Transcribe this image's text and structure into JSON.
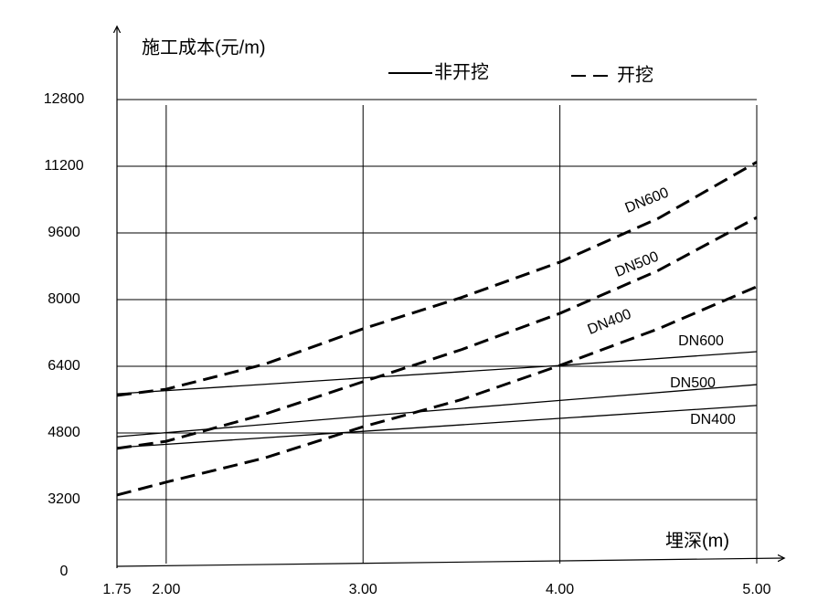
{
  "chart_data": {
    "type": "line",
    "y_label": "施工成本(元/m)",
    "x_label": "埋深(m)",
    "xlim": [
      1.75,
      5.0
    ],
    "xticks": [
      {
        "value": 1.75,
        "label": "1.75"
      },
      {
        "value": 2,
        "label": "2.00"
      },
      {
        "value": 3,
        "label": "3.00"
      },
      {
        "value": 4,
        "label": "4.00"
      },
      {
        "value": 5,
        "label": "5.00"
      }
    ],
    "ylim": [
      0,
      12800
    ],
    "axis_break": true,
    "yticks": [
      0,
      3200,
      4800,
      6400,
      8000,
      9600,
      11200,
      12800
    ],
    "grid": true,
    "legend": [
      {
        "label": "非开挖",
        "dashed": false
      },
      {
        "label": "开挖",
        "dashed": true
      }
    ],
    "series": [
      {
        "name": "DN600",
        "dashed": true,
        "color": "#000000",
        "x": [
          1.75,
          2,
          2.5,
          3,
          3.5,
          4,
          4.5,
          5
        ],
        "values": [
          5700,
          5850,
          6450,
          7300,
          8050,
          8900,
          9950,
          11300
        ]
      },
      {
        "name": "DN500",
        "dashed": true,
        "color": "#000000",
        "x": [
          1.75,
          2,
          2.5,
          3,
          3.5,
          4,
          4.5,
          5
        ],
        "values": [
          4430,
          4600,
          5250,
          6030,
          6800,
          7670,
          8700,
          9970
        ]
      },
      {
        "name": "DN400",
        "dashed": true,
        "color": "#000000",
        "x": [
          1.75,
          2,
          2.5,
          3,
          3.5,
          4,
          4.5,
          5
        ],
        "values": [
          3310,
          3620,
          4200,
          4950,
          5600,
          6420,
          7300,
          8310
        ]
      },
      {
        "name": "DN600",
        "dashed": false,
        "color": "#000000",
        "x": [
          1.75,
          3,
          4,
          5
        ],
        "values": [
          5740,
          6120,
          6420,
          6750
        ]
      },
      {
        "name": "DN500",
        "dashed": false,
        "color": "#000000",
        "x": [
          1.75,
          3,
          4,
          5
        ],
        "values": [
          4710,
          5200,
          5580,
          5960
        ]
      },
      {
        "name": "DN400",
        "dashed": false,
        "color": "#000000",
        "x": [
          1.75,
          3,
          4,
          5
        ],
        "values": [
          4450,
          4840,
          5150,
          5460
        ]
      }
    ]
  }
}
